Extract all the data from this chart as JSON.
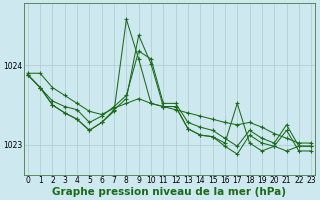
{
  "title": "Graphe pression niveau de la mer (hPa)",
  "background_color": "#cde8ee",
  "grid_color": "#aacccc",
  "line_color": "#1a6b1a",
  "x_labels": [
    "0",
    "1",
    "2",
    "3",
    "4",
    "5",
    "6",
    "7",
    "8",
    "9",
    "10",
    "11",
    "12",
    "13",
    "14",
    "15",
    "16",
    "17",
    "18",
    "19",
    "20",
    "21",
    "22",
    "23"
  ],
  "xlim": [
    -0.3,
    23.3
  ],
  "ylim": [
    1022.62,
    1024.78
  ],
  "yticks": [
    1023,
    1024
  ],
  "series1": [
    1023.9,
    1023.9,
    1023.72,
    1023.62,
    1023.52,
    1023.42,
    1023.38,
    1023.46,
    1023.52,
    1023.58,
    1023.52,
    1023.48,
    1023.44,
    1023.4,
    1023.36,
    1023.32,
    1023.28,
    1023.25,
    1023.28,
    1023.22,
    1023.14,
    1023.08,
    1023.02,
    1023.02
  ],
  "series2": [
    1023.88,
    1023.72,
    1023.55,
    1023.48,
    1023.44,
    1023.28,
    1023.36,
    1023.48,
    1023.62,
    1024.18,
    1024.08,
    1023.52,
    1023.52,
    1023.28,
    1023.22,
    1023.18,
    1023.08,
    1022.98,
    1023.18,
    1023.08,
    1023.02,
    1023.25,
    1022.98,
    1022.98
  ],
  "series3": [
    1023.88,
    1023.72,
    1023.5,
    1023.4,
    1023.32,
    1023.18,
    1023.28,
    1023.44,
    1023.58,
    1024.38,
    1024.02,
    1023.48,
    1023.48,
    1023.2,
    1023.12,
    1023.1,
    1022.98,
    1022.88,
    1023.12,
    1023.02,
    1022.98,
    1023.18,
    1022.92,
    1022.92
  ],
  "series4": [
    1023.88,
    1023.72,
    1023.5,
    1023.4,
    1023.32,
    1023.18,
    1023.28,
    1023.42,
    1024.58,
    1024.08,
    1023.52,
    1023.48,
    1023.48,
    1023.2,
    1023.12,
    1023.1,
    1023.02,
    1023.52,
    1023.02,
    1022.92,
    1022.98,
    1022.92,
    1022.98,
    1022.98
  ],
  "title_fontsize": 7.5,
  "tick_fontsize": 5.5
}
